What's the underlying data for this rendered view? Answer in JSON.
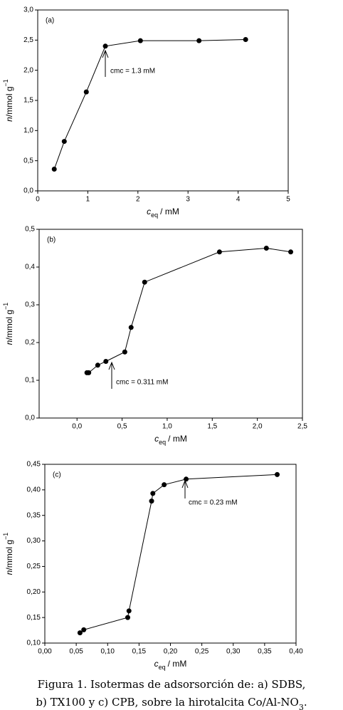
{
  "chart_data": [
    {
      "type": "line",
      "panel_label": "(a)",
      "color": "#000000",
      "x": [
        0.33,
        0.53,
        0.97,
        1.35,
        2.05,
        3.22,
        4.15
      ],
      "values": [
        0.36,
        0.82,
        1.64,
        2.4,
        2.49,
        2.49,
        2.51
      ],
      "xlim": [
        0,
        5
      ],
      "xticks": [
        0,
        1,
        2,
        3,
        4,
        5
      ],
      "ylim": [
        0,
        3
      ],
      "yticks": [
        {
          "value": 0,
          "label": "0,0"
        },
        {
          "value": 0.5,
          "label": "0,5"
        },
        {
          "value": 1,
          "label": "1,0"
        },
        {
          "value": 1.5,
          "label": "1,5"
        },
        {
          "value": 2,
          "label": "2,0"
        },
        {
          "value": 2.5,
          "label": "2,5"
        },
        {
          "value": 3,
          "label": "3,0"
        }
      ],
      "xlabel": [
        "c",
        "eq",
        "/ mM"
      ],
      "ylabel": [
        "n",
        "/mmol g",
        "−1"
      ],
      "annotation": "cmc = 1.3 mM"
    },
    {
      "type": "line",
      "panel_label": "(b)",
      "color": "#000000",
      "x": [
        0.11,
        0.13,
        0.23,
        0.32,
        0.53,
        0.6,
        0.75,
        1.58,
        2.1,
        2.37
      ],
      "values": [
        0.12,
        0.12,
        0.14,
        0.15,
        0.175,
        0.24,
        0.36,
        0.44,
        0.45,
        0.44
      ],
      "xlim": [
        -0.42,
        2.5
      ],
      "xticks": [
        {
          "value": 0,
          "label": "0,0"
        },
        {
          "value": 0.5,
          "label": "0,5"
        },
        {
          "value": 1,
          "label": "1,0"
        },
        {
          "value": 1.5,
          "label": "1,5"
        },
        {
          "value": 2,
          "label": "2,0"
        },
        {
          "value": 2.5,
          "label": "2,5"
        }
      ],
      "ylim": [
        0,
        0.5
      ],
      "yticks": [
        {
          "value": 0,
          "label": "0,0"
        },
        {
          "value": 0.1,
          "label": "0,1"
        },
        {
          "value": 0.2,
          "label": "0,2"
        },
        {
          "value": 0.3,
          "label": "0,3"
        },
        {
          "value": 0.4,
          "label": "0,4"
        },
        {
          "value": 0.5,
          "label": "0,5"
        }
      ],
      "xlabel": [
        "c",
        "eq",
        "/ mM"
      ],
      "ylabel": [
        "n",
        "/mmol g",
        "−1"
      ],
      "annotation": "cmc = 0.311 mM"
    },
    {
      "type": "line",
      "panel_label": "(c)",
      "color": "#000000",
      "x": [
        0.056,
        0.062,
        0.132,
        0.134,
        0.17,
        0.172,
        0.19,
        0.225,
        0.37
      ],
      "values": [
        0.12,
        0.126,
        0.15,
        0.163,
        0.378,
        0.393,
        0.41,
        0.421,
        0.43
      ],
      "xlim": [
        0,
        0.4
      ],
      "xticks": [
        {
          "value": 0,
          "label": "0,00"
        },
        {
          "value": 0.05,
          "label": "0,05"
        },
        {
          "value": 0.1,
          "label": "0,10"
        },
        {
          "value": 0.15,
          "label": "0,15"
        },
        {
          "value": 0.2,
          "label": "0,20"
        },
        {
          "value": 0.25,
          "label": "0,25"
        },
        {
          "value": 0.3,
          "label": "0,30"
        },
        {
          "value": 0.35,
          "label": "0,35"
        },
        {
          "value": 0.4,
          "label": "0,40"
        }
      ],
      "ylim": [
        0.1,
        0.45
      ],
      "yticks": [
        {
          "value": 0.1,
          "label": "0,10"
        },
        {
          "value": 0.15,
          "label": "0,15"
        },
        {
          "value": 0.2,
          "label": "0,20"
        },
        {
          "value": 0.25,
          "label": "0,25"
        },
        {
          "value": 0.3,
          "label": "0,30"
        },
        {
          "value": 0.35,
          "label": "0,35"
        },
        {
          "value": 0.4,
          "label": "0,40"
        },
        {
          "value": 0.45,
          "label": "0,45"
        }
      ],
      "xlabel": [
        "c",
        "eq",
        "/ mM"
      ],
      "ylabel": [
        "n",
        "/mmol g",
        "−1"
      ],
      "annotation": "cmc = 0.23 mM"
    }
  ],
  "caption": [
    [
      "Figura 1. Isotermas de adsorsorción de: a) SDBS,"
    ],
    [
      "b) TX100 y c) CPB, sobre la hirotalcita Co/Al-NO",
      "3",
      "."
    ]
  ]
}
